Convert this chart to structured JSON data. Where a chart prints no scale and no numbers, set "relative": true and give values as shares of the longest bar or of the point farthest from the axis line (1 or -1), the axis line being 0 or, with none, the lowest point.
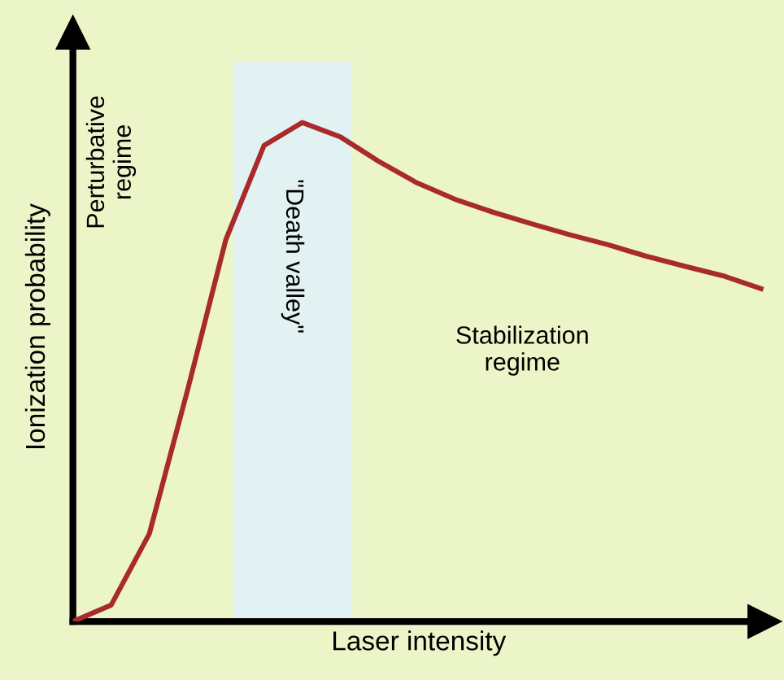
{
  "chart_data": {
    "type": "line",
    "relative": true,
    "xlabel": "Laser intensity",
    "ylabel": "Ionization probability",
    "categories": [
      null,
      null,
      null,
      null,
      null,
      null,
      null,
      null,
      null,
      null,
      null,
      null,
      null,
      null,
      null,
      null,
      null,
      null,
      null
    ],
    "series": [
      {
        "color": "#a82a2a",
        "values": [
          0,
          0.033,
          0.176,
          0.464,
          0.765,
          0.954,
          1,
          0.971,
          0.922,
          0.879,
          0.846,
          0.82,
          0.797,
          0.775,
          0.755,
          0.732,
          0.712,
          0.693,
          0.667
        ]
      }
    ],
    "annotations": [
      "Perturbative\nregime",
      "Stabilization\nregime",
      "\"Death valley\""
    ],
    "legend": false,
    "marker": "none",
    "line_style": "solid"
  }
}
